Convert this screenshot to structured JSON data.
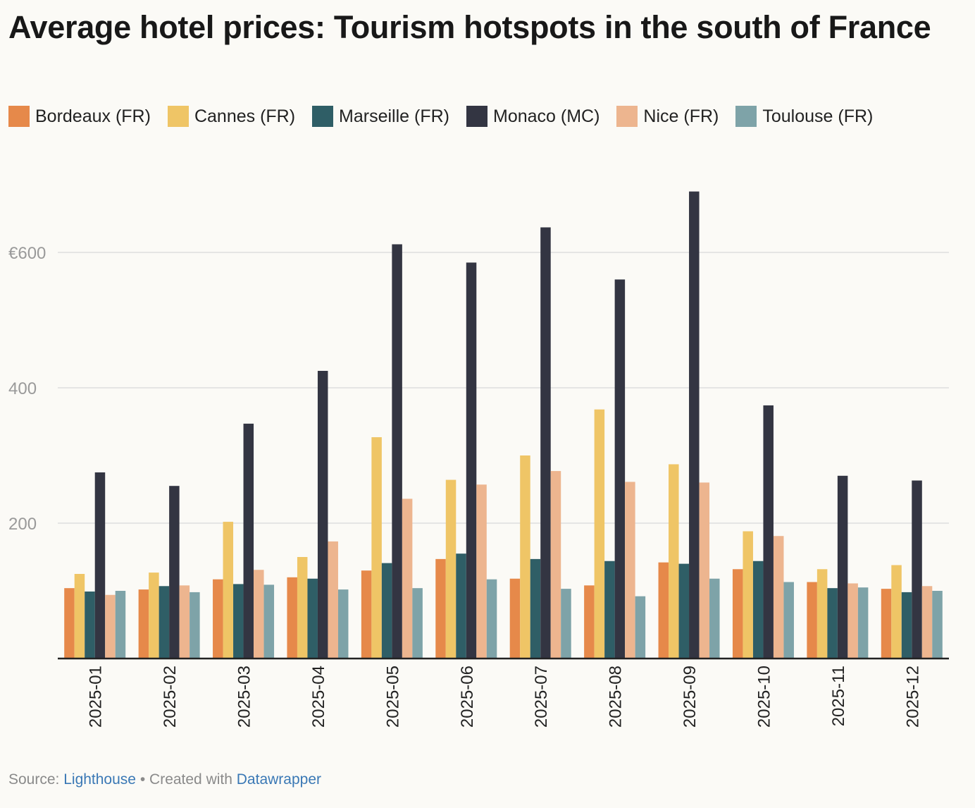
{
  "title": "Average hotel prices: Tourism hotspots in the south of France",
  "chart_data": {
    "type": "bar",
    "title": "Average hotel prices: Tourism hotspots in the south of France",
    "xlabel": "",
    "ylabel": "",
    "ylim": [
      0,
      700
    ],
    "yticks": [
      200,
      400,
      600
    ],
    "ytick_labels": [
      "200",
      "400",
      "€600"
    ],
    "grid": true,
    "legend_position": "top-left",
    "categories": [
      "2025-01",
      "2025-02",
      "2025-03",
      "2025-04",
      "2025-05",
      "2025-06",
      "2025-07",
      "2025-08",
      "2025-09",
      "2025-10",
      "2025-11",
      "2025-12"
    ],
    "series": [
      {
        "name": "Bordeaux (FR)",
        "color": "#e6894a",
        "values": [
          104,
          102,
          117,
          120,
          130,
          147,
          118,
          108,
          142,
          132,
          113,
          103
        ]
      },
      {
        "name": "Cannes (FR)",
        "color": "#efc566",
        "values": [
          125,
          127,
          202,
          150,
          327,
          264,
          300,
          368,
          287,
          188,
          132,
          138
        ]
      },
      {
        "name": "Marseille (FR)",
        "color": "#2f5e66",
        "values": [
          99,
          107,
          110,
          118,
          141,
          155,
          147,
          144,
          140,
          144,
          104,
          98
        ]
      },
      {
        "name": "Monaco (MC)",
        "color": "#333542",
        "values": [
          275,
          255,
          347,
          425,
          612,
          585,
          637,
          560,
          690,
          374,
          270,
          263
        ]
      },
      {
        "name": "Nice (FR)",
        "color": "#edb58f",
        "values": [
          94,
          108,
          131,
          173,
          236,
          257,
          277,
          261,
          260,
          181,
          111,
          107
        ]
      },
      {
        "name": "Toulouse (FR)",
        "color": "#7ea3a8",
        "values": [
          100,
          98,
          109,
          102,
          104,
          117,
          103,
          92,
          118,
          113,
          105,
          100
        ]
      }
    ]
  },
  "footer": {
    "source_label": "Source:",
    "source_link": "Lighthouse",
    "separator": "•",
    "created_label": "Created with",
    "created_link": "Datawrapper"
  }
}
